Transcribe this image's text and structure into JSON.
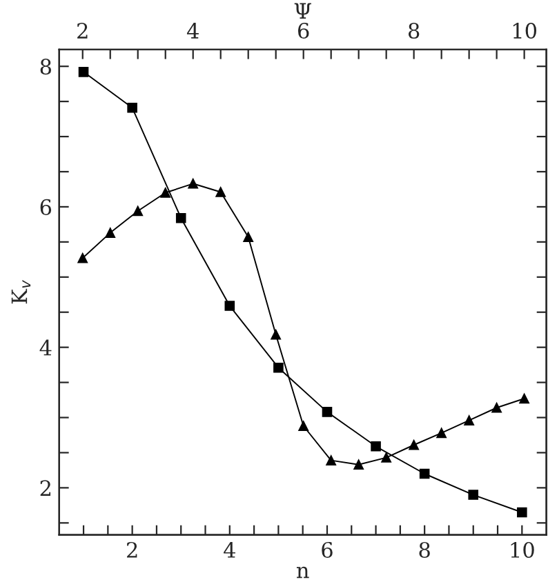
{
  "chart_data": {
    "type": "line",
    "xlabel": "n",
    "x2label": "Ψ",
    "ylabel": "K$_{v}$",
    "xlim": [
      0.5,
      10.5
    ],
    "x2lim": [
      1.575,
      10.4
    ],
    "ylim": [
      1.33,
      8.24
    ],
    "xticks": [
      {
        "value": 1,
        "label": null
      },
      {
        "value": 1.5,
        "label": null
      },
      2,
      {
        "value": 2.5,
        "label": null
      },
      {
        "value": 3,
        "label": null
      },
      {
        "value": 3.5,
        "label": null
      },
      4,
      {
        "value": 4.5,
        "label": null
      },
      {
        "value": 5,
        "label": null
      },
      {
        "value": 5.5,
        "label": null
      },
      6,
      {
        "value": 6.5,
        "label": null
      },
      {
        "value": 7,
        "label": null
      },
      {
        "value": 7.5,
        "label": null
      },
      8,
      {
        "value": 8.5,
        "label": null
      },
      {
        "value": 9,
        "label": null
      },
      {
        "value": 9.5,
        "label": null
      },
      10
    ],
    "x2ticks": [
      2,
      {
        "value": 2.5,
        "label": null
      },
      {
        "value": 3,
        "label": null
      },
      {
        "value": 3.5,
        "label": null
      },
      4,
      {
        "value": 4.5,
        "label": null
      },
      {
        "value": 5,
        "label": null
      },
      {
        "value": 5.5,
        "label": null
      },
      6,
      {
        "value": 6.5,
        "label": null
      },
      {
        "value": 7,
        "label": null
      },
      {
        "value": 7.5,
        "label": null
      },
      8,
      {
        "value": 8.5,
        "label": null
      },
      {
        "value": 9,
        "label": null
      },
      {
        "value": 9.5,
        "label": null
      },
      10
    ],
    "yticks": [
      {
        "value": 1.5,
        "label": null
      },
      2,
      {
        "value": 2.5,
        "label": null
      },
      {
        "value": 3,
        "label": null
      },
      {
        "value": 3.5,
        "label": null
      },
      4,
      {
        "value": 4.5,
        "label": null
      },
      {
        "value": 5,
        "label": null
      },
      {
        "value": 5.5,
        "label": null
      },
      6,
      {
        "value": 6.5,
        "label": null
      },
      {
        "value": 7,
        "label": null
      },
      {
        "value": 7.5,
        "label": null
      },
      8
    ],
    "grid": false,
    "series": [
      {
        "color": "#000000",
        "marker": "square",
        "x": [
          1,
          2,
          3,
          4,
          5,
          6,
          7,
          8,
          9,
          10
        ],
        "values": [
          7.92,
          7.41,
          5.84,
          4.59,
          3.71,
          3.08,
          2.59,
          2.2,
          1.9,
          1.65
        ]
      },
      {
        "color": "#000000",
        "marker": "triangle",
        "axis": "x2",
        "x": [
          2,
          2.5,
          3,
          3.5,
          4,
          4.5,
          5,
          5.5,
          6,
          6.5,
          7,
          7.5,
          8,
          8.5,
          9,
          9.5,
          10
        ],
        "values": [
          5.27,
          5.63,
          5.94,
          6.2,
          6.33,
          6.21,
          5.57,
          4.18,
          2.88,
          2.39,
          2.33,
          2.43,
          2.61,
          2.78,
          2.96,
          3.14,
          3.27
        ]
      }
    ]
  }
}
